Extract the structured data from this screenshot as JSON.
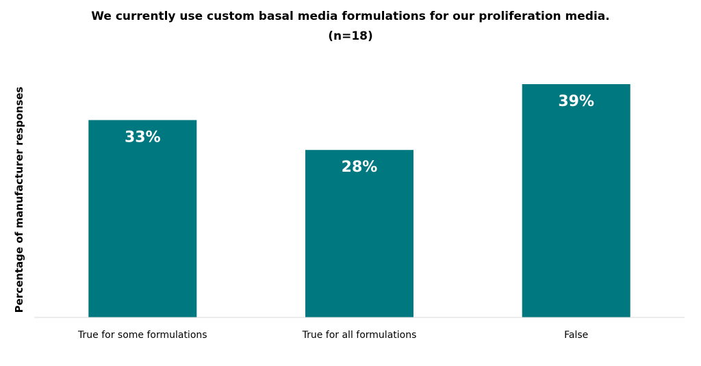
{
  "chart_data": {
    "type": "bar",
    "title": "We currently use custom basal media formulations for our proliferation media.",
    "subtitle": "(n=18)",
    "xlabel": "",
    "ylabel": "Percentage of manufacturer responses",
    "categories": [
      "True for some formulations",
      "True for all formulations",
      "False"
    ],
    "values": [
      33,
      28,
      39
    ],
    "data_labels": [
      "33%",
      "28%",
      "39%"
    ],
    "ylim": [
      0,
      39
    ],
    "grid": false,
    "legend": "none",
    "bar_color": "#007880",
    "label_color": "#ffffff",
    "axis_color": "#d9d9d9"
  }
}
